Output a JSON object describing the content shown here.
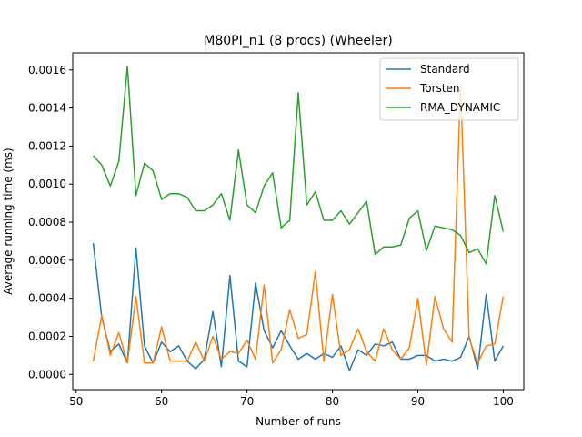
{
  "chart_data": {
    "type": "line",
    "title": "M80PI_n1 (8 procs) (Wheeler)",
    "xlabel": "Number of runs",
    "ylabel": "Average running time (ms)",
    "xlim": [
      49.6,
      102.4
    ],
    "ylim": [
      -8e-05,
      0.00169
    ],
    "xticks": [
      50,
      60,
      70,
      80,
      90,
      100
    ],
    "yticks": [
      0.0,
      0.0002,
      0.0004,
      0.0006,
      0.0008,
      0.001,
      0.0012,
      0.0014,
      0.0016
    ],
    "ytick_labels": [
      "0.0000",
      "0.0002",
      "0.0004",
      "0.0006",
      "0.0008",
      "0.0010",
      "0.0012",
      "0.0014",
      "0.0016"
    ],
    "legend_position": "top-right",
    "x": [
      52,
      53,
      54,
      55,
      56,
      57,
      58,
      59,
      60,
      61,
      62,
      63,
      64,
      65,
      66,
      67,
      68,
      69,
      70,
      71,
      72,
      73,
      74,
      75,
      76,
      77,
      78,
      79,
      80,
      81,
      82,
      83,
      84,
      85,
      86,
      87,
      88,
      89,
      90,
      91,
      92,
      93,
      94,
      95,
      96,
      97,
      98,
      99,
      100
    ],
    "series": [
      {
        "name": "Standard",
        "color": "#1f77b4",
        "values": [
          0.00069,
          0.0003,
          0.00012,
          0.00016,
          6e-05,
          0.000665,
          0.00015,
          6e-05,
          0.00017,
          0.00012,
          0.00015,
          7e-05,
          3e-05,
          8e-05,
          0.00033,
          4e-05,
          0.00052,
          7e-05,
          4e-05,
          0.00048,
          0.00023,
          0.00014,
          0.00023,
          0.00015,
          8e-05,
          0.00011,
          8e-05,
          0.00011,
          9e-05,
          0.00015,
          2e-05,
          0.00013,
          0.0001,
          0.00016,
          0.00015,
          0.00017,
          8e-05,
          8e-05,
          0.0001,
          0.0001,
          7e-05,
          8e-05,
          7e-05,
          9e-05,
          0.0002,
          3e-05,
          0.00042,
          7e-05,
          0.00015
        ]
      },
      {
        "name": "Torsten",
        "color": "#ff7f0e",
        "values": [
          7e-05,
          0.00031,
          0.0001,
          0.00022,
          6e-05,
          0.00041,
          6e-05,
          6e-05,
          0.00025,
          7e-05,
          7e-05,
          7e-05,
          0.00017,
          7e-05,
          0.0002,
          8e-05,
          0.00012,
          0.00011,
          0.00018,
          8e-05,
          0.00047,
          6e-05,
          0.00013,
          0.00034,
          0.00019,
          0.00021,
          0.00054,
          7e-05,
          0.00042,
          0.0001,
          0.00013,
          0.00024,
          0.00012,
          7e-05,
          0.00024,
          0.00013,
          8e-05,
          0.00014,
          0.0004,
          5e-05,
          0.00041,
          0.00024,
          0.00017,
          0.00152,
          0.00019,
          6e-05,
          0.00015,
          0.00016,
          0.00041
        ]
      },
      {
        "name": "RMA_DYNAMIC",
        "color": "#2ca02c",
        "values": [
          0.00115,
          0.0011,
          0.00099,
          0.00112,
          0.00162,
          0.00094,
          0.00111,
          0.00107,
          0.00092,
          0.00095,
          0.00095,
          0.00093,
          0.00086,
          0.00086,
          0.00089,
          0.00095,
          0.00081,
          0.00118,
          0.00089,
          0.00085,
          0.00099,
          0.00106,
          0.00077,
          0.00081,
          0.00148,
          0.00089,
          0.00096,
          0.00081,
          0.00081,
          0.00086,
          0.00079,
          0.00085,
          0.00091,
          0.00063,
          0.00067,
          0.00067,
          0.00068,
          0.00082,
          0.00086,
          0.00065,
          0.00078,
          0.00077,
          0.00076,
          0.00073,
          0.00064,
          0.00066,
          0.00058,
          0.00094,
          0.00075
        ]
      }
    ]
  }
}
